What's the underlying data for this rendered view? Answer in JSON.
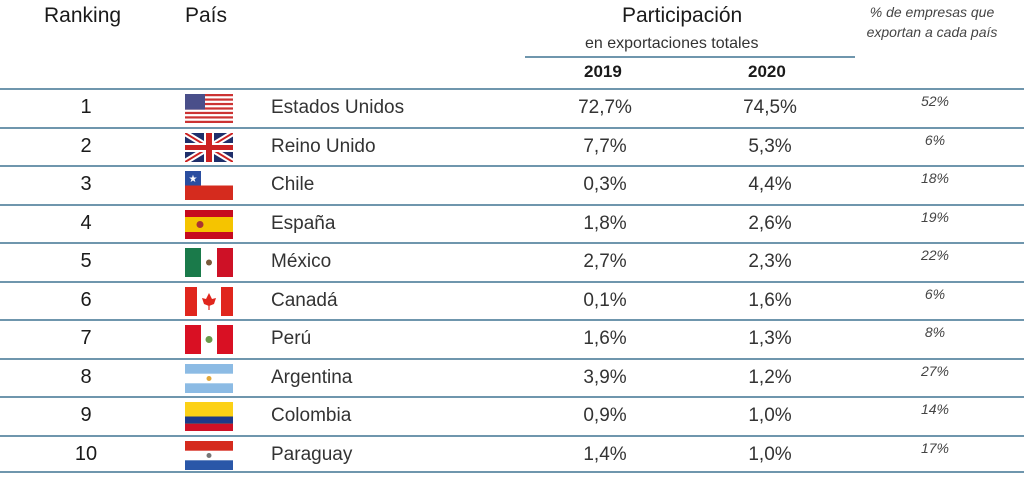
{
  "header": {
    "ranking": "Ranking",
    "pais": "País",
    "participacion": "Participación",
    "subtitle": "en exportaciones totales",
    "year1": "2019",
    "year2": "2020",
    "pct_empresas": "% de empresas que exportan a cada país"
  },
  "chart_data": {
    "type": "table",
    "columns": [
      "Ranking",
      "País",
      "2019",
      "2020",
      "% de empresas que exportan a cada país"
    ],
    "rows": [
      {
        "rank": "1",
        "country": "Estados Unidos",
        "flag": "us",
        "y2019": "72,7%",
        "y2020": "74,5%",
        "pct": "52%"
      },
      {
        "rank": "2",
        "country": "Reino Unido",
        "flag": "uk",
        "y2019": "7,7%",
        "y2020": "5,3%",
        "pct": "6%"
      },
      {
        "rank": "3",
        "country": "Chile",
        "flag": "cl",
        "y2019": "0,3%",
        "y2020": "4,4%",
        "pct": "18%"
      },
      {
        "rank": "4",
        "country": "España",
        "flag": "es",
        "y2019": "1,8%",
        "y2020": "2,6%",
        "pct": "19%"
      },
      {
        "rank": "5",
        "country": "México",
        "flag": "mx",
        "y2019": "2,7%",
        "y2020": "2,3%",
        "pct": "22%"
      },
      {
        "rank": "6",
        "country": "Canadá",
        "flag": "ca",
        "y2019": "0,1%",
        "y2020": "1,6%",
        "pct": "6%"
      },
      {
        "rank": "7",
        "country": "Perú",
        "flag": "pe",
        "y2019": "1,6%",
        "y2020": "1,3%",
        "pct": "8%"
      },
      {
        "rank": "8",
        "country": "Argentina",
        "flag": "ar",
        "y2019": "3,9%",
        "y2020": "1,2%",
        "pct": "27%"
      },
      {
        "rank": "9",
        "country": "Colombia",
        "flag": "co",
        "y2019": "0,9%",
        "y2020": "1,0%",
        "pct": "14%"
      },
      {
        "rank": "10",
        "country": "Paraguay",
        "flag": "py",
        "y2019": "1,4%",
        "y2020": "1,0%",
        "pct": "17%"
      }
    ]
  }
}
